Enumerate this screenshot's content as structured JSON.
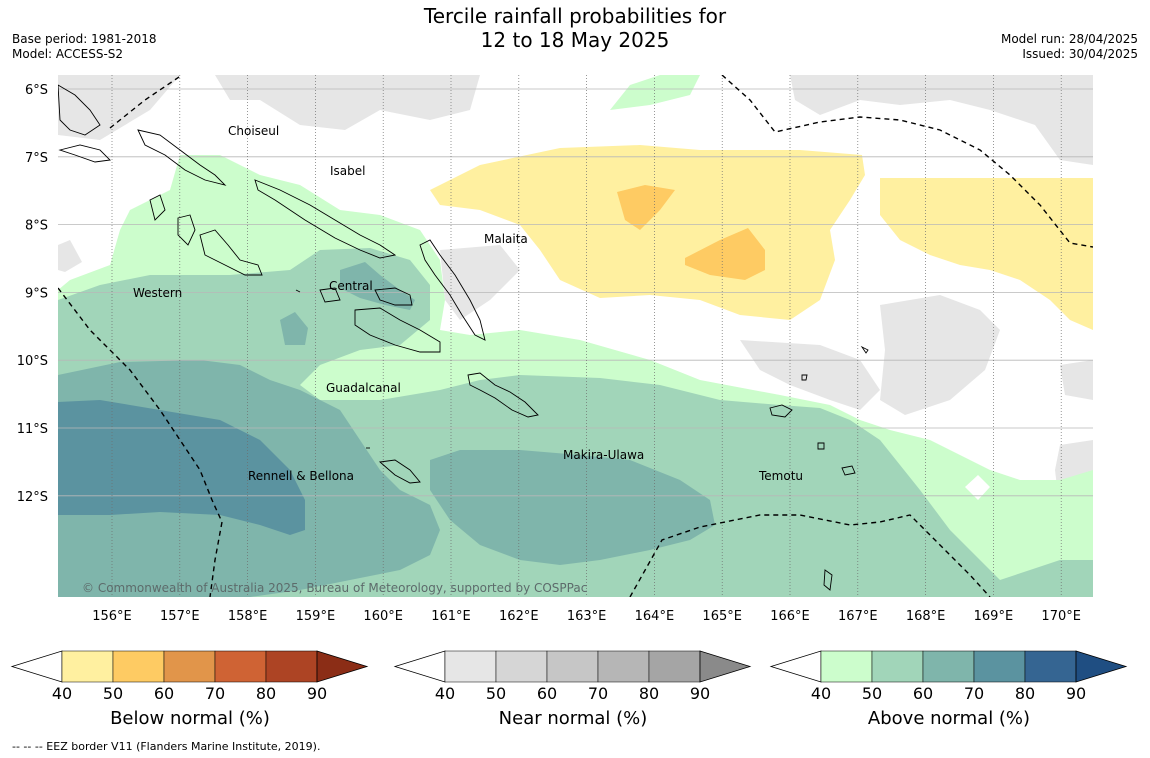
{
  "title_line1": "Tercile rainfall probabilities for",
  "title_line2": "12 to 18 May 2025",
  "base_period": "Base period: 1981-2018",
  "model": "Model: ACCESS-S2",
  "model_run": "Model run: 28/04/2025",
  "issued": "Issued: 30/04/2025",
  "lat_labels": [
    "6°S",
    "7°S",
    "8°S",
    "9°S",
    "10°S",
    "11°S",
    "12°S"
  ],
  "lon_labels": [
    "156°E",
    "157°E",
    "158°E",
    "159°E",
    "160°E",
    "161°E",
    "162°E",
    "163°E",
    "164°E",
    "165°E",
    "166°E",
    "167°E",
    "168°E",
    "169°E",
    "170°E"
  ],
  "places": [
    "Choiseul",
    "Isabel",
    "Malaita",
    "Central",
    "Western",
    "Guadalcanal",
    "Makira-Ulawa",
    "Rennell & Bellona",
    "Temotu"
  ],
  "copyright": "© Commonwealth of Australia 2025, Bureau of Meteorology, supported by COSPPac",
  "colorbars": [
    {
      "title": "Below normal (%)",
      "ticks": [
        "40",
        "50",
        "60",
        "70",
        "80",
        "90"
      ],
      "colors": [
        "#fff0a0",
        "#fecb63",
        "#e1954a",
        "#cf6334",
        "#ad4424",
        "#8b2d16"
      ]
    },
    {
      "title": "Near normal (%)",
      "ticks": [
        "40",
        "50",
        "60",
        "70",
        "80",
        "90"
      ],
      "colors": [
        "#e6e6e6",
        "#d6d6d6",
        "#c6c6c6",
        "#b6b6b6",
        "#a5a5a5",
        "#8a8a8a"
      ]
    },
    {
      "title": "Above normal (%)",
      "ticks": [
        "40",
        "50",
        "60",
        "70",
        "80",
        "90"
      ],
      "colors": [
        "#ccfdcc",
        "#a1d5b9",
        "#7fb5ab",
        "#5b93a0",
        "#356592",
        "#1f4e82"
      ]
    }
  ],
  "footnote": "--  --  -- EEZ border V11 (Flanders Marine Institute, 2019)."
}
